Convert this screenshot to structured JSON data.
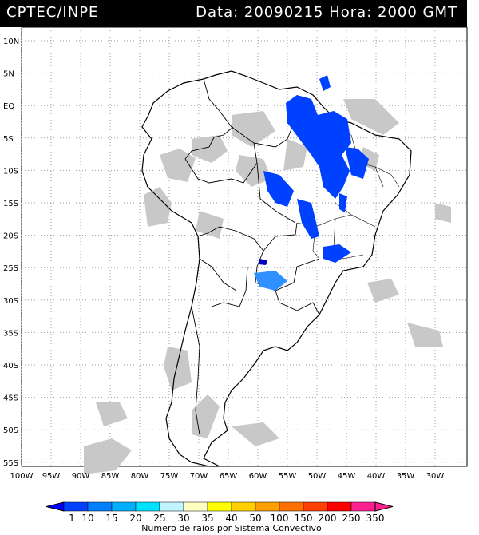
{
  "header": {
    "left": "CPTEC/INPE",
    "right": "Data: 20090215 Hora: 2000 GMT"
  },
  "map": {
    "lat_labels": [
      "10N",
      "5N",
      "EQ",
      "5S",
      "10S",
      "15S",
      "20S",
      "25S",
      "30S",
      "35S",
      "40S",
      "45S",
      "50S",
      "55S"
    ],
    "lon_labels": [
      "100W",
      "95W",
      "90W",
      "85W",
      "80W",
      "75W",
      "70W",
      "65W",
      "60W",
      "55W",
      "50W",
      "45W",
      "40W",
      "35W",
      "30W"
    ]
  },
  "legend": {
    "values": [
      "1",
      "10",
      "15",
      "20",
      "25",
      "30",
      "35",
      "40",
      "50",
      "100",
      "150",
      "200",
      "250",
      "350"
    ],
    "colors": [
      "#0000ff",
      "#0040ff",
      "#0080ff",
      "#00b0ff",
      "#00e0ff",
      "#c0f4ff",
      "#ffffc0",
      "#ffff00",
      "#ffd000",
      "#ffa000",
      "#ff7000",
      "#ff4000",
      "#ff0000",
      "#ff2090"
    ],
    "title": "Numero de raios por Sistema Convectivo"
  }
}
